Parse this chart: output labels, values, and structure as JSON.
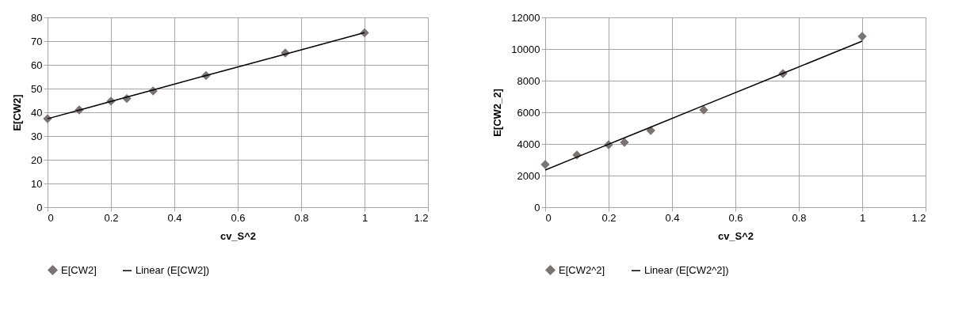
{
  "chart_data": [
    {
      "type": "scatter",
      "xlabel": "cv_S^2",
      "ylabel": "E[CW2]",
      "x": [
        0,
        0.1,
        0.2,
        0.25,
        0.333,
        0.5,
        0.75,
        1
      ],
      "xlim": [
        0,
        1.2
      ],
      "xticks": [
        0,
        0.2,
        0.4,
        0.6,
        0.8,
        1,
        1.2
      ],
      "ylim": [
        0,
        80
      ],
      "yticks": [
        0,
        10,
        20,
        30,
        40,
        50,
        60,
        70,
        80
      ],
      "grid": true,
      "legend": "bottom",
      "marker": "diamond",
      "series": [
        {
          "name": "E[CW2]",
          "color": "#7a7371",
          "values": [
            37.3,
            41,
            44.7,
            45.8,
            49,
            55.5,
            65,
            73.5
          ]
        },
        {
          "name": "Linear (E[CW2])",
          "type": "line",
          "marker": "none",
          "color": "#000000",
          "values": [
            37.3,
            40.9,
            44.6,
            46.4,
            49.4,
            55.5,
            64.5,
            73.6
          ]
        }
      ]
    },
    {
      "type": "scatter",
      "xlabel": "cv_S^2",
      "ylabel": "E[CW2_2]",
      "x": [
        0,
        0.1,
        0.2,
        0.25,
        0.333,
        0.5,
        0.75,
        1
      ],
      "xlim": [
        0,
        1.2
      ],
      "xticks": [
        0,
        0.2,
        0.4,
        0.6,
        0.8,
        1,
        1.2
      ],
      "ylim": [
        0,
        12000
      ],
      "yticks": [
        0,
        2000,
        4000,
        6000,
        8000,
        10000,
        12000
      ],
      "grid": true,
      "legend": "bottom",
      "marker": "diamond",
      "series": [
        {
          "name": "E[CW2^2]",
          "color": "#7a7371",
          "values": [
            2700,
            3300,
            3950,
            4100,
            4850,
            6150,
            8450,
            10800
          ]
        },
        {
          "name": "Linear (E[CW2^2])",
          "type": "line",
          "marker": "none",
          "color": "#000000",
          "values": [
            2350,
            3170,
            3980,
            4390,
            5060,
            6430,
            8460,
            10500
          ]
        }
      ]
    }
  ]
}
